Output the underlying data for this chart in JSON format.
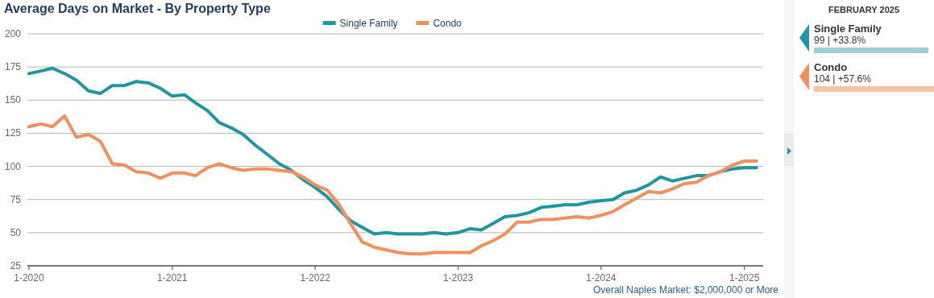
{
  "chart_data": [
    {
      "type": "line",
      "title": "Average Days on Market - By Property Type",
      "x": [
        "2020-01",
        "2020-02",
        "2020-03",
        "2020-04",
        "2020-05",
        "2020-06",
        "2020-07",
        "2020-08",
        "2020-09",
        "2020-10",
        "2020-11",
        "2020-12",
        "2021-01",
        "2021-02",
        "2021-03",
        "2021-04",
        "2021-05",
        "2021-06",
        "2021-07",
        "2021-08",
        "2021-09",
        "2021-10",
        "2021-11",
        "2021-12",
        "2022-01",
        "2022-02",
        "2022-03",
        "2022-04",
        "2022-05",
        "2022-06",
        "2022-07",
        "2022-08",
        "2022-09",
        "2022-10",
        "2022-11",
        "2022-12",
        "2023-01",
        "2023-02",
        "2023-03",
        "2023-04",
        "2023-05",
        "2023-06",
        "2023-07",
        "2023-08",
        "2023-09",
        "2023-10",
        "2023-11",
        "2023-12",
        "2024-01",
        "2024-02",
        "2024-03",
        "2024-04",
        "2024-05",
        "2024-06",
        "2024-07",
        "2024-08",
        "2024-09",
        "2024-10",
        "2024-11",
        "2024-12",
        "2025-01",
        "2025-02"
      ],
      "series": [
        {
          "name": "Single Family",
          "color": "#2196a0",
          "values": [
            170,
            172,
            174,
            170,
            165,
            157,
            155,
            161,
            161,
            164,
            163,
            159,
            153,
            154,
            148,
            142,
            133,
            129,
            124,
            116,
            109,
            102,
            97,
            90,
            84,
            77,
            68,
            59,
            54,
            49,
            50,
            49,
            49,
            49,
            50,
            49,
            50,
            53,
            52,
            57,
            62,
            63,
            65,
            69,
            70,
            71,
            71,
            73,
            74,
            75,
            80,
            82,
            86,
            92,
            89,
            91,
            93,
            93,
            96,
            98,
            99,
            99
          ]
        },
        {
          "name": "Condo",
          "color": "#f0905a",
          "values": [
            130,
            132,
            130,
            138,
            122,
            124,
            119,
            102,
            101,
            96,
            95,
            91,
            95,
            95,
            93,
            99,
            102,
            99,
            97,
            98,
            98,
            97,
            96,
            92,
            86,
            82,
            72,
            57,
            43,
            39,
            37,
            35,
            34,
            34,
            35,
            35,
            35,
            35,
            40,
            44,
            49,
            58,
            58,
            60,
            60,
            61,
            62,
            61,
            63,
            66,
            71,
            76,
            81,
            80,
            83,
            87,
            88,
            93,
            96,
            101,
            104,
            104
          ]
        }
      ],
      "xlim": [
        "2019-12-28",
        "2025-02-18"
      ],
      "xticks": [
        {
          "value": "2020-01",
          "label": "1-2020"
        },
        {
          "value": "2021-01",
          "label": "1-2021"
        },
        {
          "value": "2022-01",
          "label": "1-2022"
        },
        {
          "value": "2023-01",
          "label": "1-2023"
        },
        {
          "value": "2024-01",
          "label": "1-2024"
        },
        {
          "value": "2025-01",
          "label": "1-2025"
        }
      ],
      "ylim": [
        25,
        200
      ],
      "yticks": [
        25,
        50,
        75,
        100,
        125,
        150,
        175,
        200
      ],
      "grid": "y",
      "legend": "top",
      "marker": "none",
      "line_style": "solid",
      "annotations": [
        "Overall Naples Market: $2,000,000 or More"
      ]
    },
    {
      "type": "bar",
      "orientation": "horizontal",
      "title": "FEBRUARY 2025",
      "categories": [
        "Single Family",
        "Condo"
      ],
      "values": [
        99,
        104
      ],
      "colors": [
        "#9ccfd3",
        "#f7c4a8"
      ],
      "value_labels": [
        "99 | +33.8%",
        "104 | +57.6%"
      ]
    }
  ]
}
